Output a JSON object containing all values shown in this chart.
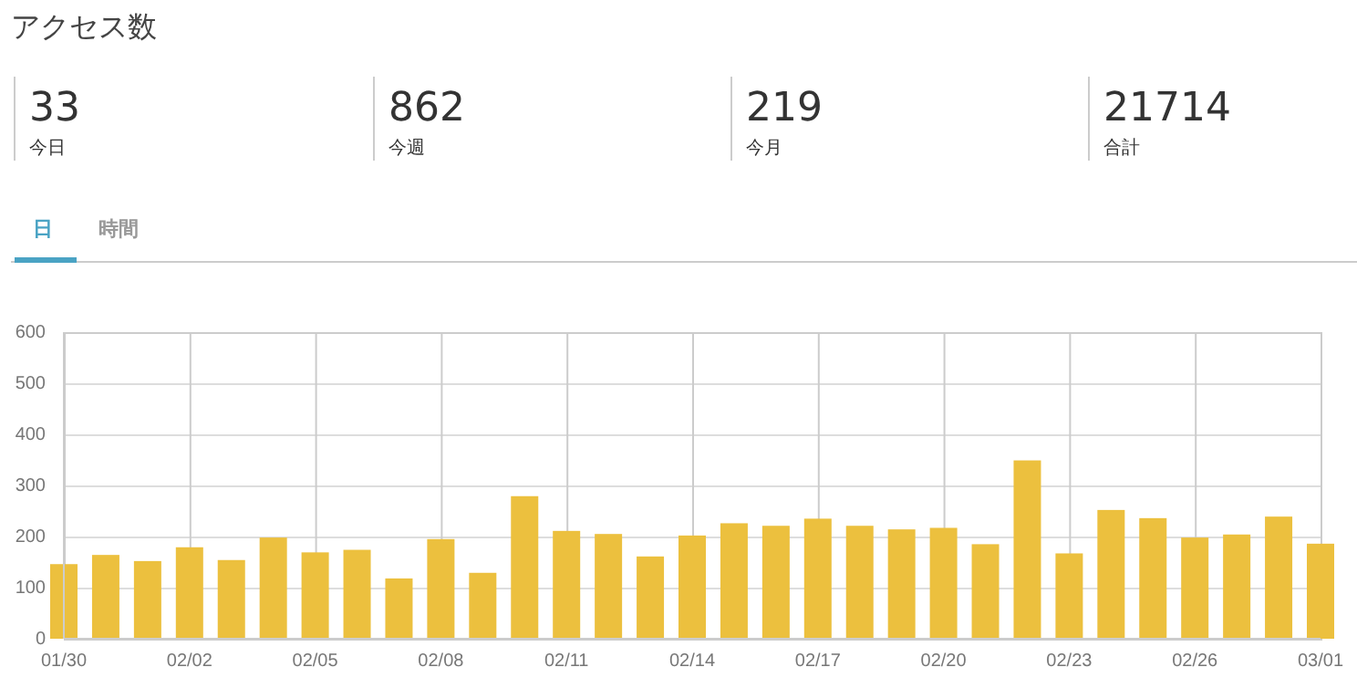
{
  "chart_data": {
    "type": "bar",
    "title": "アクセス数",
    "annotations": [
      "33",
      "今日",
      "862",
      "今週",
      "219",
      "今月",
      "21714",
      "合計",
      "日",
      "時間"
    ],
    "categories": [
      "01/30",
      null,
      null,
      "02/02",
      null,
      null,
      "02/05",
      null,
      null,
      "02/08",
      null,
      null,
      "02/11",
      null,
      null,
      "02/14",
      null,
      null,
      "02/17",
      null,
      null,
      "02/20",
      null,
      null,
      "02/23",
      null,
      null,
      "02/26",
      null,
      null,
      "03/01"
    ],
    "values": [
      146,
      164,
      152,
      179,
      154,
      198,
      169,
      174,
      118,
      195,
      129,
      279,
      211,
      205,
      161,
      202,
      226,
      221,
      235,
      221,
      214,
      217,
      185,
      349,
      167,
      252,
      236,
      198,
      204,
      239,
      186
    ],
    "color": "#ecc03e",
    "ylim": [
      0,
      600
    ],
    "yticks": [
      0,
      100,
      200,
      300,
      400,
      500,
      600
    ],
    "grid": true
  }
}
